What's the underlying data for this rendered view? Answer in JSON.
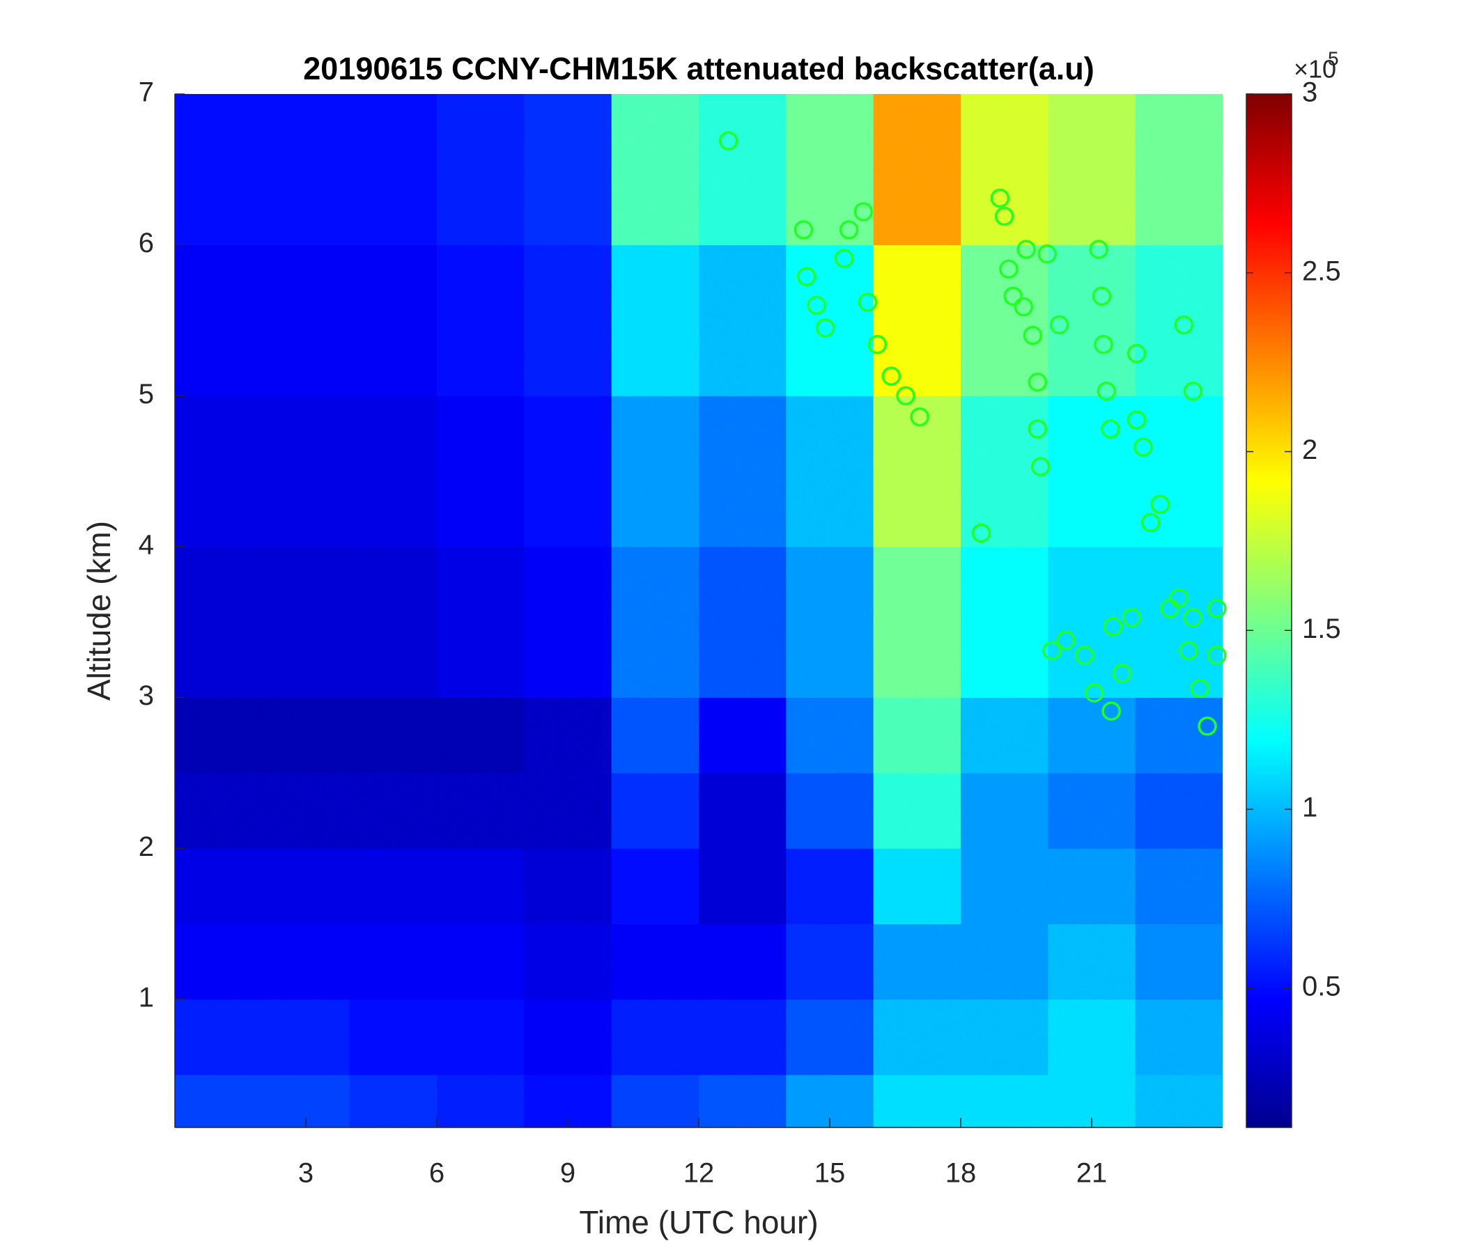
{
  "chart_data": {
    "type": "heatmap",
    "title": "20190615 CCNY-CHM15K attenuated backscatter(a.u)",
    "xlabel": "Time (UTC hour)",
    "ylabel": "Altitude (km)",
    "xlim": [
      0,
      24
    ],
    "ylim": [
      0.15,
      7
    ],
    "xticks": [
      3,
      6,
      9,
      12,
      15,
      18,
      21
    ],
    "yticks": [
      1,
      2,
      3,
      4,
      5,
      6,
      7
    ],
    "colormap": "jet",
    "clim": [
      0.11,
      3
    ],
    "colorbar_ticks": [
      0.5,
      1,
      1.5,
      2,
      2.5,
      3
    ],
    "colorbar_scale_base": "×10",
    "colorbar_scale_power": "5",
    "x_edges": [
      0,
      2,
      4,
      6,
      8,
      10,
      12,
      14,
      16,
      18,
      20,
      22,
      24
    ],
    "y_edges": [
      0.15,
      0.5,
      1,
      1.5,
      2,
      2.5,
      3,
      4,
      5,
      6,
      7
    ],
    "z": [
      [
        0.65,
        0.65,
        0.6,
        0.55,
        0.5,
        0.65,
        0.7,
        0.9,
        1.1,
        1.1,
        1.1,
        1.0
      ],
      [
        0.55,
        0.55,
        0.5,
        0.5,
        0.45,
        0.55,
        0.55,
        0.7,
        1.0,
        1.0,
        1.1,
        0.95
      ],
      [
        0.45,
        0.45,
        0.45,
        0.45,
        0.4,
        0.45,
        0.45,
        0.6,
        0.9,
        0.9,
        1.0,
        0.85
      ],
      [
        0.4,
        0.4,
        0.4,
        0.4,
        0.35,
        0.5,
        0.35,
        0.55,
        1.1,
        0.9,
        0.9,
        0.8
      ],
      [
        0.3,
        0.3,
        0.3,
        0.3,
        0.3,
        0.6,
        0.35,
        0.7,
        1.3,
        0.9,
        0.8,
        0.7
      ],
      [
        0.25,
        0.25,
        0.25,
        0.25,
        0.3,
        0.7,
        0.45,
        0.8,
        1.4,
        1.0,
        0.9,
        0.8
      ],
      [
        0.35,
        0.35,
        0.35,
        0.4,
        0.45,
        0.8,
        0.7,
        0.9,
        1.5,
        1.2,
        1.1,
        1.1
      ],
      [
        0.4,
        0.4,
        0.4,
        0.45,
        0.5,
        0.9,
        0.8,
        1.0,
        1.7,
        1.3,
        1.2,
        1.2
      ],
      [
        0.45,
        0.45,
        0.45,
        0.5,
        0.55,
        1.1,
        1.0,
        1.2,
        1.9,
        1.5,
        1.4,
        1.3
      ],
      [
        0.5,
        0.5,
        0.5,
        0.55,
        0.6,
        1.4,
        1.3,
        1.5,
        2.2,
        1.8,
        1.7,
        1.5
      ]
    ],
    "overlay": {
      "type": "scatter",
      "color": "#22ff22",
      "x": [
        12.68,
        14.4,
        14.47,
        14.7,
        14.9,
        15.44,
        15.77,
        15.33,
        15.87,
        16.09,
        16.41,
        16.74,
        17.06,
        18.47,
        18.9,
        19.0,
        19.1,
        19.2,
        19.5,
        19.98,
        19.44,
        19.65,
        19.76,
        19.76,
        19.83,
        20.26,
        20.09,
        20.41,
        20.84,
        21.06,
        21.16,
        21.23,
        21.27,
        21.34,
        21.43,
        21.49,
        21.45,
        21.7,
        21.92,
        22.03,
        22.18,
        22.03,
        22.35,
        22.57,
        22.79,
        23.11,
        23.0,
        23.32,
        23.32,
        23.22,
        23.48,
        23.65,
        23.87,
        23.87
      ],
      "values": [
        6.69,
        6.1,
        5.79,
        5.6,
        5.45,
        6.1,
        6.22,
        5.91,
        5.62,
        5.34,
        5.13,
        5.0,
        4.86,
        4.09,
        6.31,
        6.19,
        5.84,
        5.66,
        5.97,
        5.94,
        5.59,
        5.4,
        5.09,
        4.78,
        4.53,
        5.47,
        3.31,
        3.38,
        3.28,
        3.03,
        5.97,
        5.66,
        5.34,
        5.03,
        4.78,
        3.47,
        2.91,
        3.16,
        3.53,
        4.84,
        4.66,
        5.28,
        4.16,
        4.28,
        3.59,
        5.47,
        3.66,
        5.03,
        3.53,
        3.31,
        3.06,
        2.81,
        3.59,
        3.28
      ]
    }
  }
}
